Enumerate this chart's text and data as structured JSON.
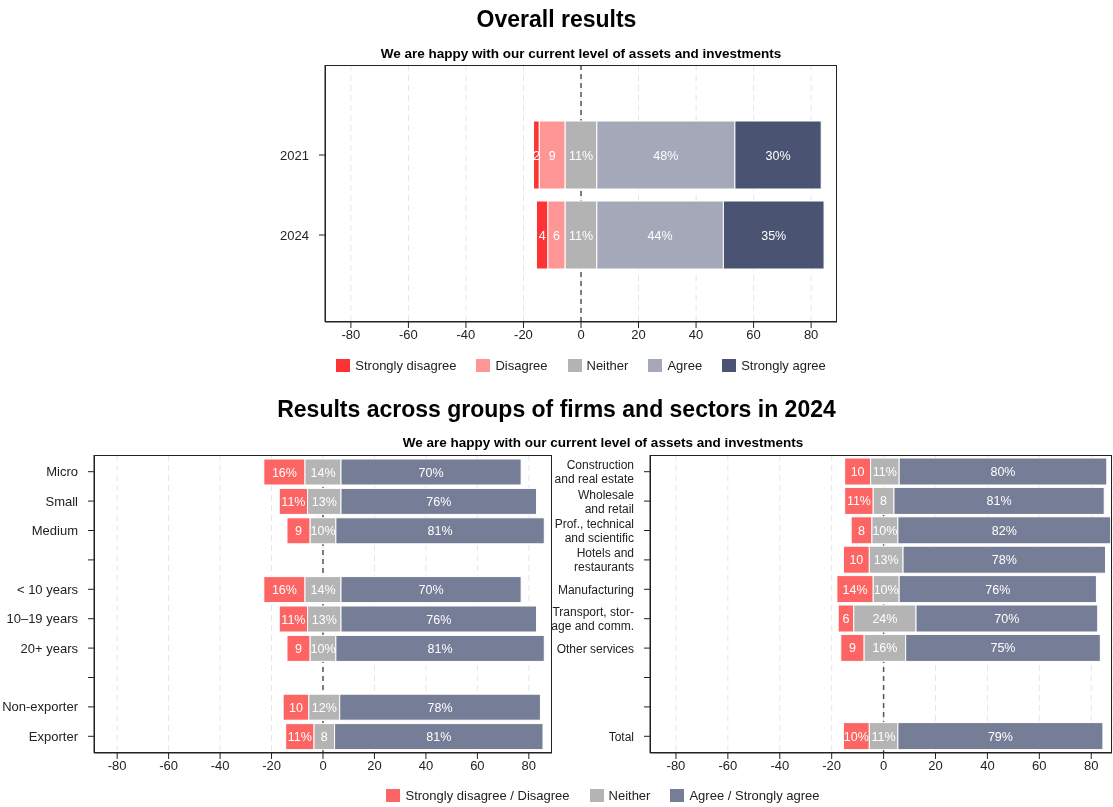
{
  "chart_data": [
    {
      "type": "bar",
      "orientation": "horizontal",
      "title": "Overall results",
      "subtitle": "We are happy with our current level of assets and investments",
      "categories": [
        "2021",
        "2024"
      ],
      "series": [
        {
          "name": "Strongly disagree",
          "color": "#ff3333",
          "base": [
            -16.5,
            -15.5
          ],
          "values": [
            2,
            4
          ],
          "value_labels": [
            "2",
            "4"
          ]
        },
        {
          "name": "Disagree",
          "color": "#ff9696",
          "base": [
            -14.5,
            -11.5
          ],
          "values": [
            9,
            6
          ],
          "value_labels": [
            "9",
            "6"
          ]
        },
        {
          "name": "Neither",
          "color": "#b3b3b3",
          "base": [
            -5.5,
            -5.5
          ],
          "values": [
            11,
            11
          ],
          "value_labels": [
            "11%",
            "11%"
          ]
        },
        {
          "name": "Agree",
          "color": "#a4a8b8",
          "base": [
            5.5,
            5.5
          ],
          "values": [
            48,
            44
          ],
          "value_labels": [
            "48%",
            "44%"
          ]
        },
        {
          "name": "Strongly agree",
          "color": "#4a5472",
          "base": [
            53.5,
            49.5
          ],
          "values": [
            30,
            35
          ],
          "value_labels": [
            "30%",
            "35%"
          ]
        }
      ],
      "xlim": [
        -89,
        89
      ],
      "xticks": [
        -80,
        -60,
        -40,
        -20,
        0,
        20,
        40,
        60,
        80
      ],
      "grid": "x",
      "legend": "bottom",
      "ref_lines": [
        {
          "axis": "x",
          "value": 0,
          "label": null,
          "line_style": "dashed"
        }
      ]
    },
    {
      "type": "bar",
      "orientation": "horizontal",
      "title": "Results across groups of firms and sectors in 2024",
      "subtitle": "We are happy with our current level of assets and investments",
      "categories": [
        "Micro",
        "Small",
        "Medium",
        null,
        "< 10 years",
        "10–19 years",
        "20+ years",
        null,
        "Non-exporter",
        "Exporter"
      ],
      "series": [
        {
          "name": "Strongly disagree / Disagree",
          "color": "#fd6464",
          "base": [
            -23,
            -17,
            -14,
            null,
            -23,
            -17,
            -14,
            null,
            -15.5,
            -14.5
          ],
          "values": [
            16,
            11,
            9,
            null,
            16,
            11,
            9,
            null,
            10,
            11
          ],
          "value_labels": [
            "16%",
            "11%",
            "9",
            null,
            "16%",
            "11%",
            "9",
            null,
            "10",
            "11%"
          ]
        },
        {
          "name": "Neither",
          "color": "#b4b4b4",
          "base": [
            -7,
            -6,
            -5,
            null,
            -7,
            -6,
            -5,
            null,
            -5.5,
            -3.5
          ],
          "values": [
            14,
            13,
            10,
            null,
            14,
            13,
            10,
            null,
            12,
            8
          ],
          "value_labels": [
            "14%",
            "13%",
            "10%",
            null,
            "14%",
            "13%",
            "10%",
            null,
            "12%",
            "8"
          ]
        },
        {
          "name": "Agree / Strongly agree",
          "color": "#767d96",
          "base": [
            7,
            7,
            5,
            null,
            7,
            7,
            5,
            null,
            6.5,
            4.5
          ],
          "values": [
            70,
            76,
            81,
            null,
            70,
            76,
            81,
            null,
            78,
            81
          ],
          "value_labels": [
            "70%",
            "76%",
            "81%",
            null,
            "70%",
            "76%",
            "81%",
            null,
            "78%",
            "81%"
          ]
        }
      ],
      "xlim": [
        -89,
        89
      ],
      "xticks": [
        -80,
        -60,
        -40,
        -20,
        0,
        20,
        40,
        60,
        80
      ],
      "grid": "x",
      "legend": "bottom",
      "ref_lines": [
        {
          "axis": "x",
          "value": 0,
          "label": null,
          "line_style": "dashed"
        }
      ]
    },
    {
      "type": "bar",
      "orientation": "horizontal",
      "categories": [
        "Construction\nand real estate",
        "Wholesale\nand retail",
        "Prof., technical\nand scientific",
        "Hotels and\nrestaurants",
        "Manufacturing",
        "Transport, stor-\nage and comm.",
        "Other services",
        null,
        null,
        "Total"
      ],
      "series": [
        {
          "color": "#fd6464",
          "base": [
            -15,
            -15,
            -12.5,
            -15.5,
            -18,
            -17.5,
            -16.5,
            null,
            null,
            -15.5
          ],
          "values": [
            10,
            11,
            8,
            10,
            14,
            6,
            9,
            null,
            null,
            10
          ],
          "value_labels": [
            "10",
            "11%",
            "8",
            "10",
            "14%",
            "6",
            "9",
            null,
            null,
            "10%"
          ]
        },
        {
          "color": "#b4b4b4",
          "base": [
            -5,
            -4,
            -4.5,
            -5.5,
            -4,
            -11.5,
            -7.5,
            null,
            null,
            -5.5
          ],
          "values": [
            11,
            8,
            10,
            13,
            10,
            24,
            16,
            null,
            null,
            11
          ],
          "value_labels": [
            "11%",
            "8",
            "10%",
            "13%",
            "10%",
            "24%",
            "16%",
            null,
            null,
            "11%"
          ]
        },
        {
          "color": "#767d96",
          "base": [
            6,
            4,
            5.5,
            7.5,
            6,
            12.5,
            8.5,
            null,
            null,
            5.5
          ],
          "values": [
            80,
            81,
            82,
            78,
            76,
            70,
            75,
            null,
            null,
            79
          ],
          "value_labels": [
            "80%",
            "81%",
            "82%",
            "78%",
            "76%",
            "70%",
            "75%",
            null,
            null,
            "79%"
          ]
        }
      ],
      "xlim": [
        -90,
        88
      ],
      "xticks": [
        -80,
        -60,
        -40,
        -20,
        0,
        20,
        40,
        60,
        80
      ],
      "grid": "x",
      "ref_lines": [
        {
          "axis": "x",
          "value": 0,
          "label": null,
          "line_style": "dashed"
        }
      ]
    }
  ]
}
